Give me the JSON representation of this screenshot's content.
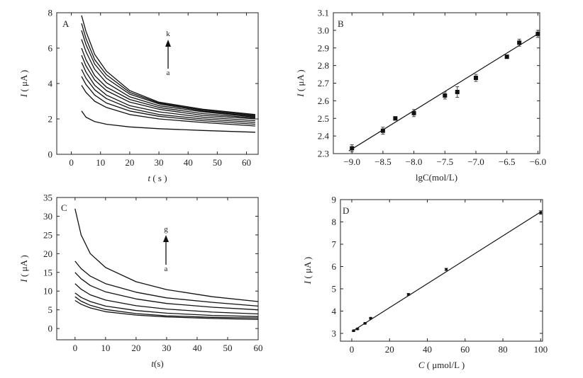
{
  "chart_data": [
    {
      "panel": "A",
      "type": "line",
      "xlabel_italic": "t",
      "xlabel_rest": " ( s )",
      "ylabel_italic": "I",
      "ylabel_rest": " ( μA )",
      "xlim": [
        -5,
        64
      ],
      "ylim": [
        0,
        8
      ],
      "xticks": [
        0,
        10,
        20,
        30,
        40,
        50,
        60
      ],
      "yticks": [
        0,
        2,
        4,
        6,
        8
      ],
      "arrow_start_label": "a",
      "arrow_end_label": "k",
      "series": [
        {
          "x": [
            3.5,
            5,
            8,
            12,
            20,
            30,
            45,
            63
          ],
          "y": [
            2.45,
            2.1,
            1.85,
            1.7,
            1.55,
            1.45,
            1.35,
            1.25
          ]
        },
        {
          "x": [
            3.5,
            5,
            8,
            12,
            20,
            30,
            45,
            63
          ],
          "y": [
            3.9,
            3.5,
            3.0,
            2.65,
            2.25,
            2.0,
            1.8,
            1.6
          ]
        },
        {
          "x": [
            3.5,
            5,
            8,
            12,
            20,
            30,
            45,
            63
          ],
          "y": [
            4.4,
            3.95,
            3.35,
            2.9,
            2.45,
            2.15,
            1.9,
            1.7
          ]
        },
        {
          "x": [
            3.5,
            5,
            8,
            12,
            20,
            30,
            45,
            63
          ],
          "y": [
            4.8,
            4.3,
            3.65,
            3.15,
            2.6,
            2.25,
            2.0,
            1.8
          ]
        },
        {
          "x": [
            3.5,
            5,
            8,
            12,
            20,
            30,
            45,
            63
          ],
          "y": [
            5.2,
            4.65,
            3.9,
            3.35,
            2.75,
            2.4,
            2.1,
            1.9
          ]
        },
        {
          "x": [
            3.5,
            5,
            8,
            12,
            20,
            30,
            45,
            63
          ],
          "y": [
            5.6,
            5.0,
            4.2,
            3.6,
            2.95,
            2.55,
            2.2,
            2.0
          ]
        },
        {
          "x": [
            3.5,
            5,
            8,
            12,
            20,
            30,
            45,
            63
          ],
          "y": [
            6.0,
            5.35,
            4.45,
            3.8,
            3.1,
            2.65,
            2.3,
            2.05
          ]
        },
        {
          "x": [
            3.5,
            5,
            8,
            12,
            20,
            30,
            45,
            63
          ],
          "y": [
            6.5,
            5.8,
            4.8,
            4.05,
            3.25,
            2.75,
            2.4,
            2.1
          ]
        },
        {
          "x": [
            3.5,
            5,
            8,
            12,
            20,
            30,
            45,
            63
          ],
          "y": [
            7.0,
            6.2,
            5.1,
            4.3,
            3.4,
            2.85,
            2.45,
            2.15
          ]
        },
        {
          "x": [
            3.5,
            5,
            8,
            12,
            20,
            30,
            45,
            63
          ],
          "y": [
            7.4,
            6.55,
            5.35,
            4.5,
            3.5,
            2.9,
            2.5,
            2.2
          ]
        },
        {
          "x": [
            3.5,
            5,
            8,
            12,
            20,
            30,
            45,
            63
          ],
          "y": [
            7.85,
            6.95,
            5.65,
            4.7,
            3.6,
            2.95,
            2.55,
            2.25
          ]
        }
      ]
    },
    {
      "panel": "B",
      "type": "scatter",
      "xlabel": "lgC(mol/L)",
      "ylabel_italic": "I",
      "ylabel_rest": " ( μA )",
      "xlim": [
        -9.3,
        -5.97
      ],
      "ylim": [
        2.3,
        3.1
      ],
      "xticks": [
        -9.0,
        -8.5,
        -8.0,
        -7.5,
        -7.0,
        -6.5,
        -6.0
      ],
      "xtick_labels": [
        "−9.0",
        "−8.5",
        "−8.0",
        "−7.5",
        "−7.0",
        "−6.5",
        "−6.0"
      ],
      "yticks": [
        2.3,
        2.4,
        2.5,
        2.6,
        2.7,
        2.8,
        2.9,
        3.0,
        3.1
      ],
      "points": [
        {
          "x": -9.0,
          "y": 2.33,
          "err": 0.02
        },
        {
          "x": -8.5,
          "y": 2.43,
          "err": 0.02
        },
        {
          "x": -8.3,
          "y": 2.5,
          "err": 0.01
        },
        {
          "x": -8.0,
          "y": 2.53,
          "err": 0.02
        },
        {
          "x": -7.5,
          "y": 2.63,
          "err": 0.02
        },
        {
          "x": -7.3,
          "y": 2.65,
          "err": 0.03
        },
        {
          "x": -7.0,
          "y": 2.73,
          "err": 0.02
        },
        {
          "x": -6.5,
          "y": 2.85,
          "err": 0.01
        },
        {
          "x": -6.3,
          "y": 2.93,
          "err": 0.02
        },
        {
          "x": -6.0,
          "y": 2.98,
          "err": 0.02
        }
      ],
      "fit": {
        "x": [
          -9.05,
          -6.0
        ],
        "y": [
          2.315,
          2.98
        ]
      }
    },
    {
      "panel": "C",
      "type": "line",
      "xlabel_italic": "t",
      "xlabel_rest": "(s)",
      "ylabel_italic": "I",
      "ylabel_rest": " ( μA )",
      "xlim": [
        -6,
        60
      ],
      "ylim": [
        -3,
        35
      ],
      "xticks": [
        0,
        10,
        20,
        30,
        40,
        50,
        60
      ],
      "yticks": [
        0,
        5,
        10,
        15,
        20,
        25,
        30,
        35
      ],
      "arrow_start_label": "a",
      "arrow_end_label": "g",
      "series": [
        {
          "x": [
            0,
            2,
            5,
            10,
            20,
            30,
            45,
            60
          ],
          "y": [
            7.5,
            6.5,
            5.5,
            4.5,
            3.6,
            3.1,
            2.7,
            2.4
          ]
        },
        {
          "x": [
            0,
            2,
            5,
            10,
            20,
            30,
            45,
            60
          ],
          "y": [
            8.5,
            7.3,
            6.2,
            5.1,
            4.0,
            3.4,
            3.0,
            2.8
          ]
        },
        {
          "x": [
            0,
            2,
            5,
            10,
            20,
            30,
            45,
            60
          ],
          "y": [
            9.5,
            8.3,
            7.2,
            6.0,
            4.8,
            4.1,
            3.5,
            3.2
          ]
        },
        {
          "x": [
            0,
            2,
            5,
            10,
            20,
            30,
            45,
            60
          ],
          "y": [
            12.0,
            10.5,
            9.0,
            7.6,
            6.1,
            5.2,
            4.4,
            3.9
          ]
        },
        {
          "x": [
            0,
            2,
            5,
            10,
            20,
            30,
            45,
            60
          ],
          "y": [
            15.0,
            13.3,
            11.5,
            9.8,
            7.9,
            6.7,
            5.7,
            5.0
          ]
        },
        {
          "x": [
            0,
            2,
            5,
            10,
            20,
            30,
            45,
            60
          ],
          "y": [
            18.0,
            16.0,
            14.0,
            12.0,
            9.7,
            8.2,
            7.0,
            6.0
          ]
        },
        {
          "x": [
            0,
            2,
            5,
            10,
            20,
            30,
            45,
            60
          ],
          "y": [
            32.0,
            25.0,
            20.0,
            16.3,
            12.5,
            10.4,
            8.5,
            7.2
          ]
        }
      ]
    },
    {
      "panel": "D",
      "type": "scatter",
      "xlabel_italic": "C",
      "xlabel_rest": " ( μmol/L )",
      "ylabel_italic": "I",
      "ylabel_rest": " ( μA )",
      "xlim": [
        -6,
        101
      ],
      "ylim": [
        2.65,
        9
      ],
      "xticks": [
        0,
        20,
        40,
        60,
        80,
        100
      ],
      "yticks": [
        3,
        4,
        5,
        6,
        7,
        8,
        9
      ],
      "points": [
        {
          "x": 1,
          "y": 3.12,
          "err": 0.02
        },
        {
          "x": 3,
          "y": 3.2,
          "err": 0.02
        },
        {
          "x": 7,
          "y": 3.45,
          "err": 0.02
        },
        {
          "x": 10,
          "y": 3.68,
          "err": 0.03
        },
        {
          "x": 30,
          "y": 4.75,
          "err": 0.04
        },
        {
          "x": 50,
          "y": 5.87,
          "err": 0.05
        },
        {
          "x": 100,
          "y": 8.42,
          "err": 0.08
        }
      ],
      "fit": {
        "x": [
          0,
          100
        ],
        "y": [
          3.08,
          8.45
        ]
      }
    }
  ]
}
